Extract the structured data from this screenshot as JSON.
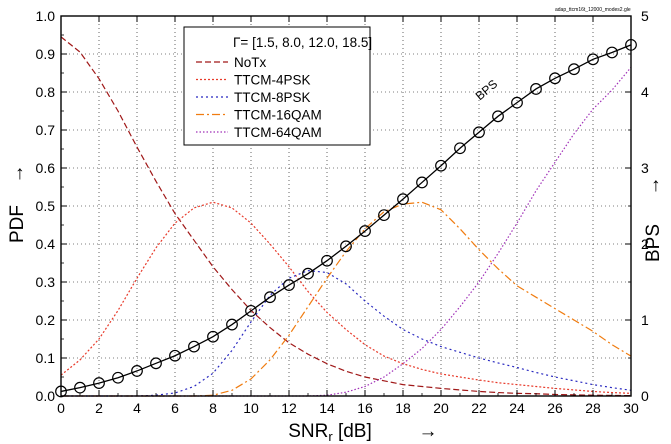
{
  "file_tag": "adap_ttcm16t_12000_modes2.gle",
  "chart_data": {
    "type": "line",
    "x_label": "SNR",
    "x_label_sub": "r",
    "x_label_unit": " [dB]",
    "x_arrow": "→",
    "y_label": "PDF",
    "y_arrow": "→",
    "y2_label": "BPS",
    "y2_arrow": "→",
    "xlim": [
      0,
      30
    ],
    "ylim": [
      0,
      1
    ],
    "y2lim": [
      0,
      5
    ],
    "x_ticks": [
      0,
      2,
      4,
      6,
      8,
      10,
      12,
      14,
      16,
      18,
      20,
      22,
      24,
      26,
      28,
      30
    ],
    "y_ticks": [
      0.0,
      0.1,
      0.2,
      0.3,
      0.4,
      0.5,
      0.6,
      0.7,
      0.8,
      0.9,
      1.0
    ],
    "y_tick_labels": [
      "0.0",
      "0.1",
      "0.2",
      "0.3",
      "0.4",
      "0.5",
      "0.6",
      "0.7",
      "0.8",
      "0.9",
      "1.0"
    ],
    "y2_ticks": [
      0,
      1,
      2,
      3,
      4,
      5
    ],
    "grid": true,
    "legend": {
      "position": "top-center",
      "title": "Γ= [1.5, 8.0, 12.0, 18.5]"
    },
    "series": [
      {
        "name": "NoTx",
        "color": "#a01818",
        "dash": "6,3",
        "axis": "left",
        "x": [
          0,
          1,
          2,
          3,
          4,
          5,
          6,
          7,
          8,
          9,
          10,
          11,
          12,
          13,
          14,
          15,
          16,
          17,
          18,
          19,
          20,
          21,
          22,
          23,
          24,
          25,
          26,
          27,
          28,
          29,
          30
        ],
        "y": [
          0.945,
          0.905,
          0.835,
          0.75,
          0.655,
          0.565,
          0.48,
          0.41,
          0.34,
          0.28,
          0.225,
          0.18,
          0.14,
          0.11,
          0.085,
          0.065,
          0.05,
          0.04,
          0.03,
          0.025,
          0.02,
          0.016,
          0.012,
          0.009,
          0.007,
          0.006,
          0.004,
          0.003,
          0.002,
          0.0015,
          0.001
        ]
      },
      {
        "name": "TTCM-4PSK",
        "color": "#e83a2a",
        "dash": "2,2",
        "axis": "left",
        "x": [
          0,
          1,
          2,
          3,
          4,
          5,
          6,
          7,
          8,
          9,
          10,
          11,
          12,
          13,
          14,
          15,
          16,
          17,
          18,
          19,
          20,
          21,
          22,
          23,
          24,
          25,
          26,
          27,
          28,
          29,
          30
        ],
        "y": [
          0.055,
          0.095,
          0.15,
          0.225,
          0.31,
          0.39,
          0.455,
          0.495,
          0.51,
          0.495,
          0.455,
          0.4,
          0.34,
          0.275,
          0.22,
          0.175,
          0.135,
          0.105,
          0.085,
          0.07,
          0.058,
          0.05,
          0.042,
          0.035,
          0.03,
          0.025,
          0.02,
          0.016,
          0.012,
          0.009,
          0.007
        ]
      },
      {
        "name": "TTCM-8PSK",
        "color": "#2828c0",
        "dash": "2,3",
        "axis": "left",
        "x": [
          0,
          1,
          2,
          3,
          4,
          5,
          6,
          7,
          8,
          9,
          10,
          11,
          12,
          13,
          14,
          15,
          16,
          17,
          18,
          19,
          20,
          21,
          22,
          23,
          24,
          25,
          26,
          27,
          28,
          29,
          30
        ],
        "y": [
          0,
          0,
          0,
          0,
          0,
          0.002,
          0.008,
          0.025,
          0.06,
          0.12,
          0.195,
          0.265,
          0.31,
          0.33,
          0.325,
          0.295,
          0.25,
          0.21,
          0.175,
          0.15,
          0.13,
          0.115,
          0.1,
          0.087,
          0.075,
          0.062,
          0.05,
          0.04,
          0.03,
          0.022,
          0.015
        ]
      },
      {
        "name": "TTCM-16QAM",
        "color": "#f07c10",
        "dash": "8,3,2,3",
        "axis": "left",
        "x": [
          0,
          1,
          2,
          3,
          4,
          5,
          6,
          7,
          8,
          9,
          10,
          11,
          12,
          13,
          14,
          15,
          16,
          17,
          18,
          19,
          20,
          21,
          22,
          23,
          24,
          25,
          26,
          27,
          28,
          29,
          30
        ],
        "y": [
          0,
          0,
          0,
          0,
          0,
          0,
          0,
          0,
          0.002,
          0.015,
          0.045,
          0.095,
          0.16,
          0.235,
          0.31,
          0.38,
          0.44,
          0.485,
          0.505,
          0.51,
          0.49,
          0.44,
          0.385,
          0.335,
          0.29,
          0.26,
          0.23,
          0.2,
          0.17,
          0.135,
          0.105
        ]
      },
      {
        "name": "TTCM-64QAM",
        "color": "#a030b8",
        "dash": "1.5,2",
        "axis": "left",
        "x": [
          0,
          1,
          2,
          3,
          4,
          5,
          6,
          7,
          8,
          9,
          10,
          11,
          12,
          13,
          14,
          15,
          16,
          17,
          18,
          19,
          20,
          21,
          22,
          23,
          24,
          25,
          26,
          27,
          28,
          29,
          30
        ],
        "y": [
          0,
          0,
          0,
          0,
          0,
          0,
          0,
          0,
          0,
          0,
          0,
          0,
          0,
          0,
          0.002,
          0.01,
          0.025,
          0.05,
          0.085,
          0.125,
          0.175,
          0.235,
          0.3,
          0.375,
          0.455,
          0.54,
          0.615,
          0.69,
          0.755,
          0.805,
          0.865
        ]
      },
      {
        "name": "BPS",
        "color": "#000000",
        "dash": "",
        "marker": "circle",
        "axis": "right",
        "x": [
          0,
          1,
          2,
          3,
          4,
          5,
          6,
          7,
          8,
          9,
          10,
          11,
          12,
          13,
          14,
          15,
          16,
          17,
          18,
          19,
          20,
          21,
          22,
          23,
          24,
          25,
          26,
          27,
          28,
          29,
          30
        ],
        "y": [
          0.06,
          0.11,
          0.17,
          0.24,
          0.33,
          0.43,
          0.53,
          0.65,
          0.78,
          0.94,
          1.12,
          1.3,
          1.46,
          1.61,
          1.78,
          1.97,
          2.17,
          2.38,
          2.59,
          2.81,
          3.03,
          3.26,
          3.47,
          3.68,
          3.86,
          4.04,
          4.18,
          4.3,
          4.43,
          4.52,
          4.62
        ]
      }
    ]
  }
}
